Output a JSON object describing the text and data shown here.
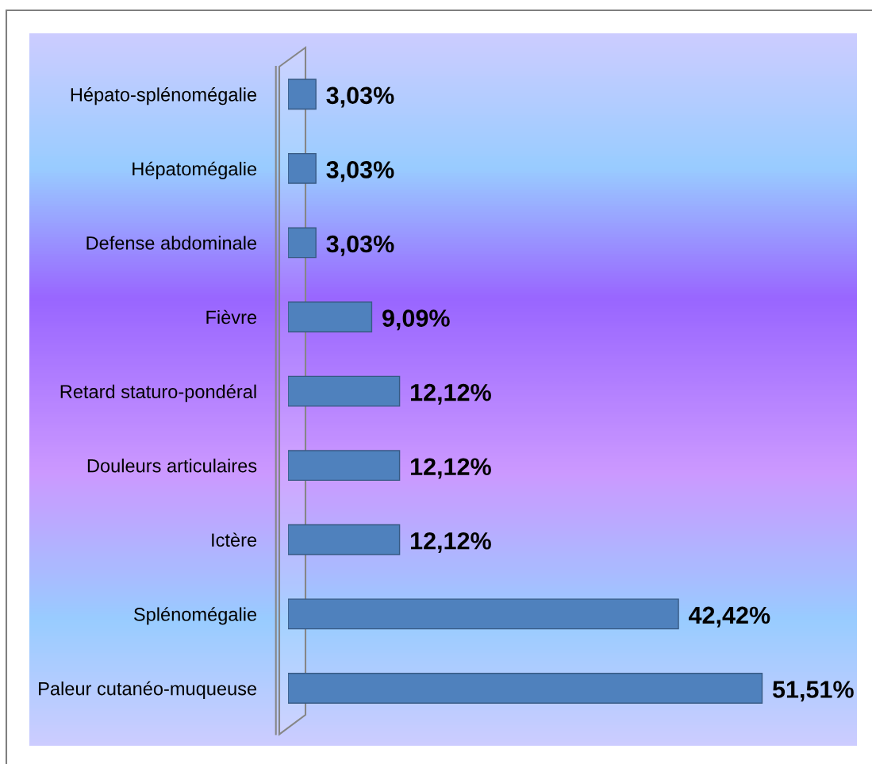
{
  "chart_data": {
    "type": "bar",
    "orientation": "horizontal",
    "categories": [
      "Hépato-splénomégalie",
      "Hépatomégalie",
      "Defense abdominale",
      "Fièvre",
      "Retard staturo-pondéral",
      "Douleurs articulaires",
      "Ictère",
      "Splénomégalie",
      "Paleur cutanéo-muqueuse"
    ],
    "values": [
      3.03,
      3.03,
      3.03,
      9.09,
      12.12,
      12.12,
      12.12,
      42.42,
      51.51
    ],
    "value_labels": [
      "3,03%",
      "3,03%",
      "3,03%",
      "9,09%",
      "12,12%",
      "12,12%",
      "12,12%",
      "42,42%",
      "51,51%"
    ],
    "color": "#4f81bd",
    "tick_labels": "y"
  }
}
